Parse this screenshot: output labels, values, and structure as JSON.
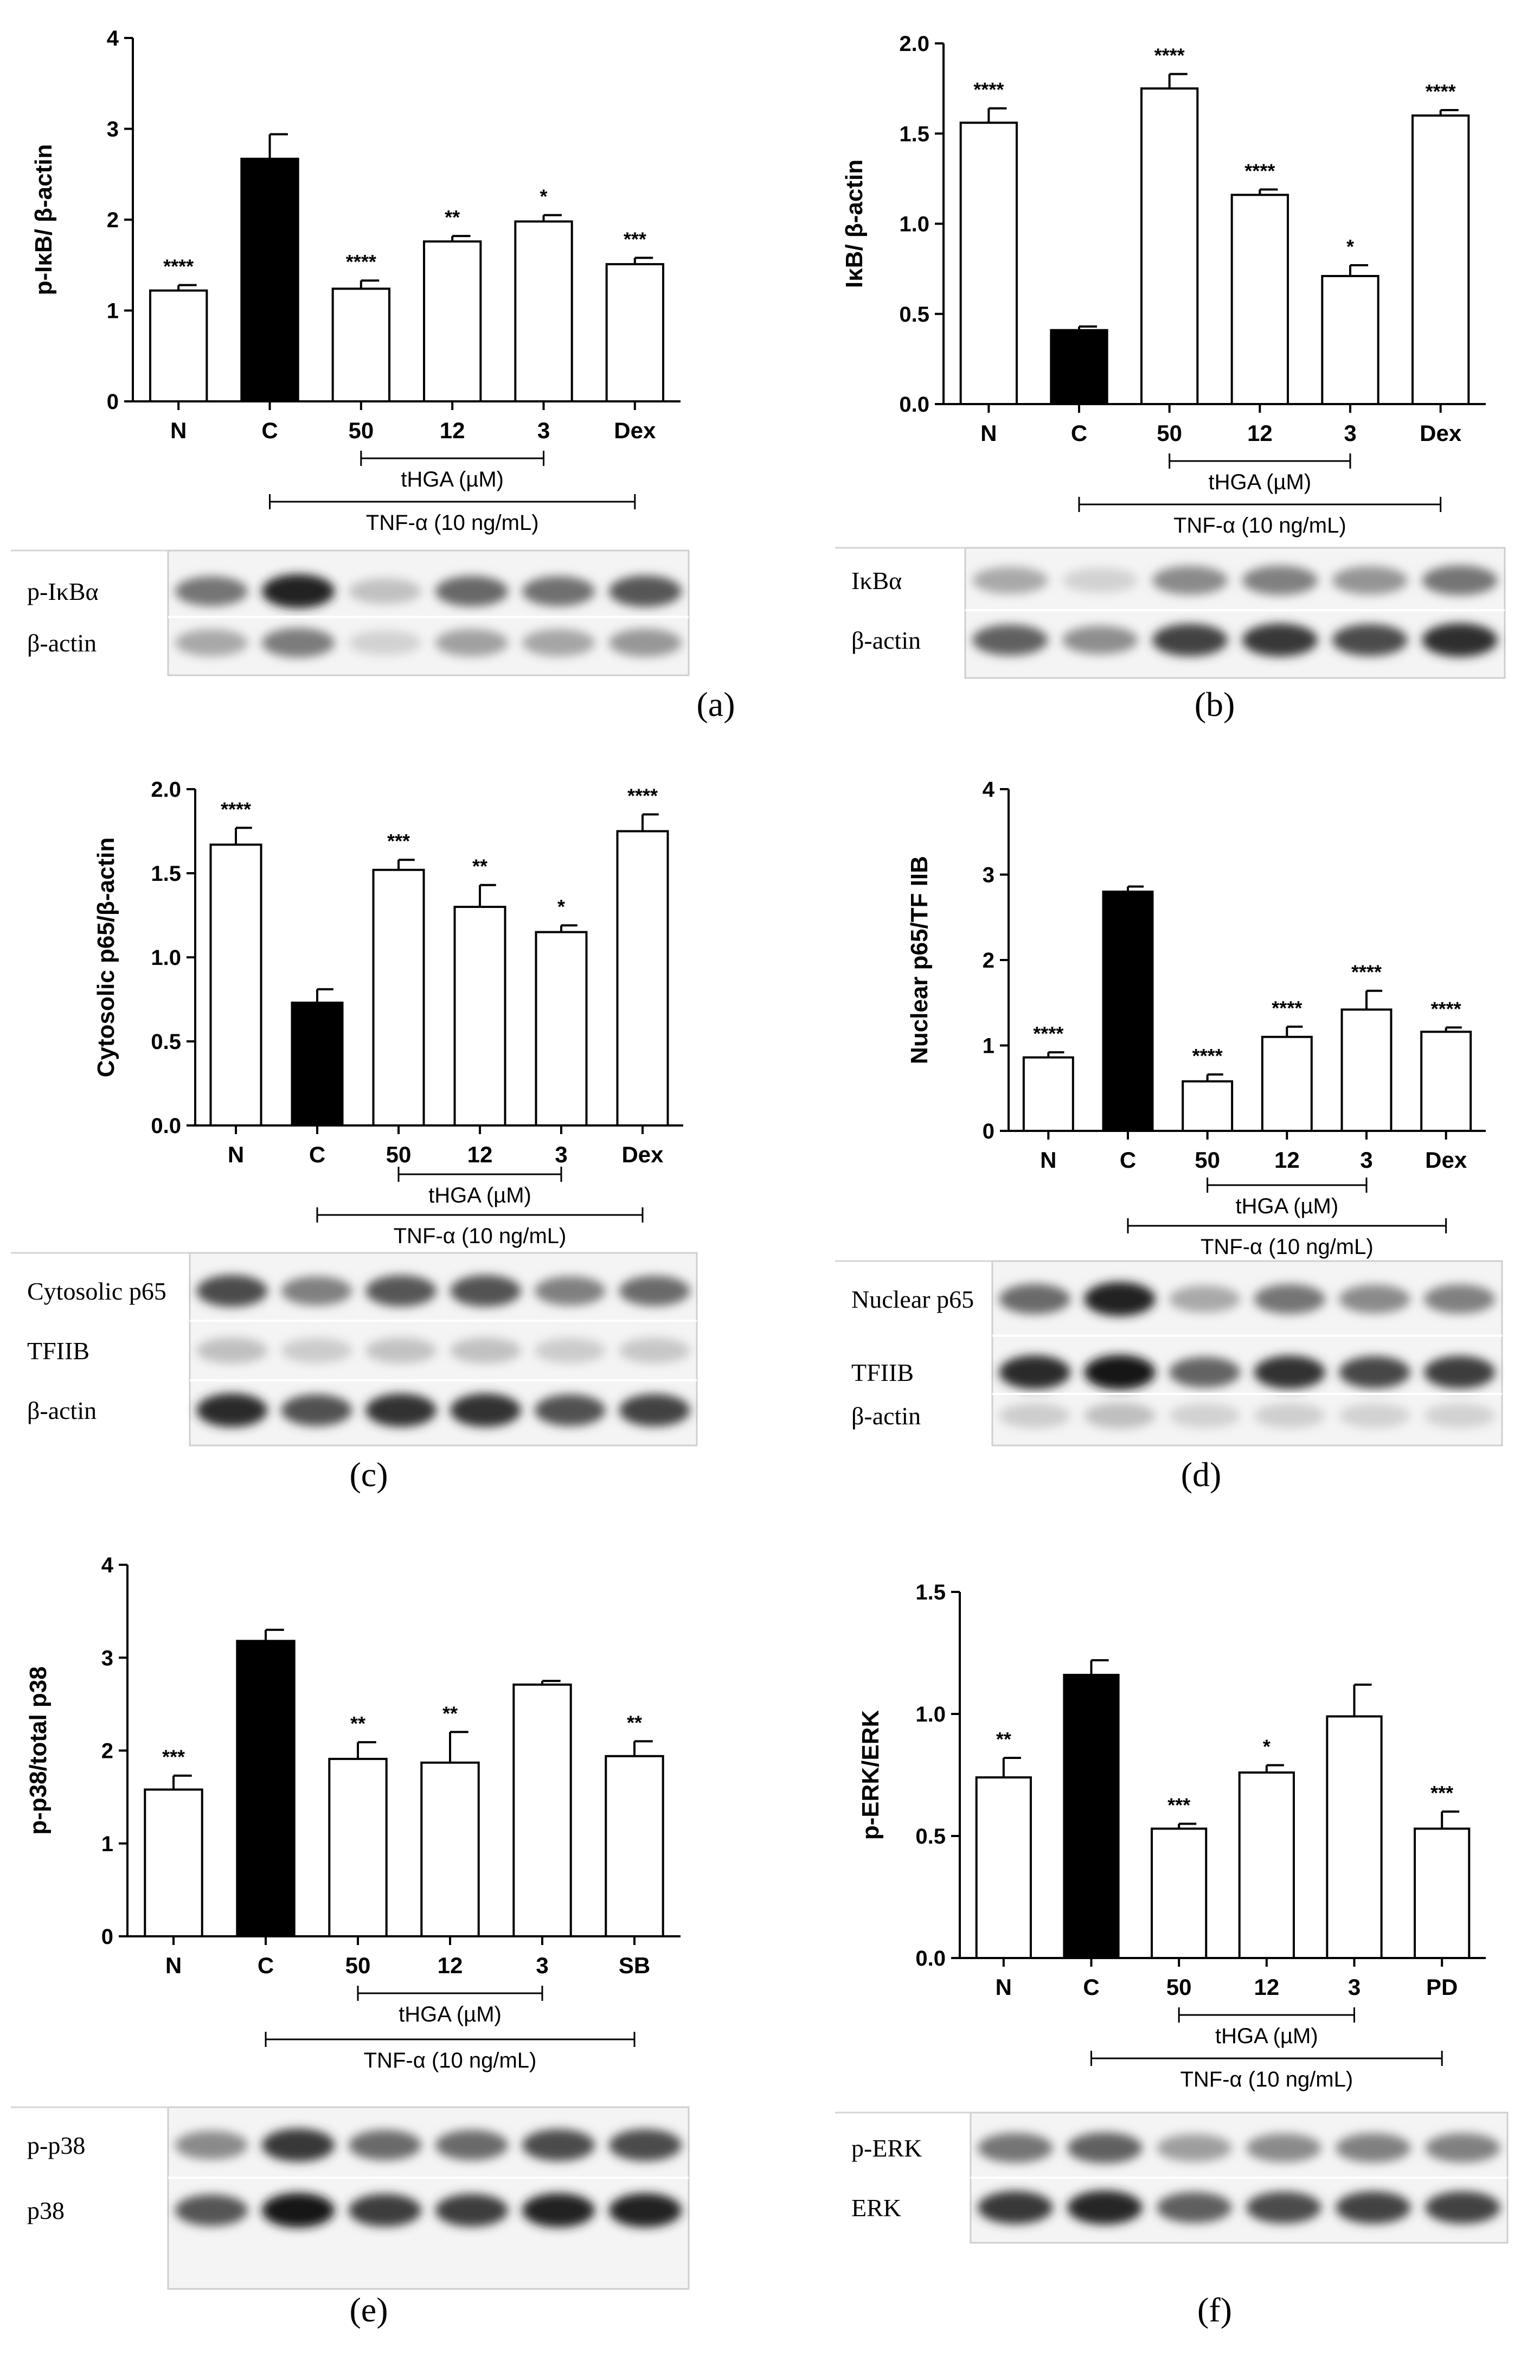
{
  "colors": {
    "control_bar": "#000000",
    "other_bar": "#ffffff",
    "axis": "#000000"
  },
  "panels": [
    {
      "caption": "(a)",
      "chart_data": {
        "type": "bar",
        "title": "",
        "ylabel": "p-IκB/ β-actin",
        "xlabel": "",
        "ylim": [
          0,
          4
        ],
        "yticks": [
          "0",
          "1",
          "2",
          "3",
          "4"
        ],
        "categories": [
          "N",
          "C",
          "50",
          "12",
          "3",
          "Dex"
        ],
        "values": [
          1.22,
          2.67,
          1.24,
          1.76,
          1.98,
          1.51
        ],
        "errors": [
          0.06,
          0.27,
          0.09,
          0.06,
          0.07,
          0.07
        ],
        "significance": [
          "****",
          "",
          "****",
          "**",
          "*",
          "***"
        ],
        "filled": [
          false,
          true,
          false,
          false,
          false,
          false
        ],
        "group_label": "tHGA (µM)",
        "treatment_label": "TNF-α (10 ng/mL)"
      },
      "blot": {
        "rows": [
          "p-IκBα",
          "β-actin"
        ]
      }
    },
    {
      "caption": "(b)",
      "chart_data": {
        "type": "bar",
        "title": "",
        "ylabel": "IκB/ β-actin",
        "xlabel": "",
        "ylim": [
          0,
          2.0
        ],
        "yticks": [
          "0.0",
          "0.5",
          "1.0",
          "1.5",
          "2.0"
        ],
        "categories": [
          "N",
          "C",
          "50",
          "12",
          "3",
          "Dex"
        ],
        "values": [
          1.56,
          0.41,
          1.75,
          1.16,
          0.71,
          1.6
        ],
        "errors": [
          0.08,
          0.02,
          0.08,
          0.03,
          0.06,
          0.03
        ],
        "significance": [
          "****",
          "",
          "****",
          "****",
          "*",
          "****"
        ],
        "filled": [
          false,
          true,
          false,
          false,
          false,
          false
        ],
        "group_label": "tHGA (µM)",
        "treatment_label": "TNF-α (10 ng/mL)"
      },
      "blot": {
        "rows": [
          "IκBα",
          "β-actin"
        ]
      }
    },
    {
      "caption": "(c)",
      "chart_data": {
        "type": "bar",
        "title": "",
        "ylabel": "Cytosolic p65/β-actin",
        "xlabel": "",
        "ylim": [
          0,
          2.0
        ],
        "yticks": [
          "0.0",
          "0.5",
          "1.0",
          "1.5",
          "2.0"
        ],
        "categories": [
          "N",
          "C",
          "50",
          "12",
          "3",
          "Dex"
        ],
        "values": [
          1.67,
          0.73,
          1.52,
          1.3,
          1.15,
          1.75
        ],
        "errors": [
          0.1,
          0.08,
          0.06,
          0.13,
          0.04,
          0.1
        ],
        "significance": [
          "****",
          "",
          "***",
          "**",
          "*",
          "****"
        ],
        "filled": [
          false,
          true,
          false,
          false,
          false,
          false
        ],
        "group_label": "tHGA (µM)",
        "treatment_label": "TNF-α (10 ng/mL)"
      },
      "blot": {
        "rows": [
          "Cytosolic p65",
          "TFIIB",
          "β-actin"
        ]
      }
    },
    {
      "caption": "(d)",
      "chart_data": {
        "type": "bar",
        "title": "",
        "ylabel": "Nuclear p65/TF IIB",
        "xlabel": "",
        "ylim": [
          0,
          4
        ],
        "yticks": [
          "0",
          "1",
          "2",
          "3",
          "4"
        ],
        "categories": [
          "N",
          "C",
          "50",
          "12",
          "3",
          "Dex"
        ],
        "values": [
          0.86,
          2.8,
          0.58,
          1.1,
          1.42,
          1.16
        ],
        "errors": [
          0.06,
          0.06,
          0.08,
          0.12,
          0.22,
          0.05
        ],
        "significance": [
          "****",
          "",
          "****",
          "****",
          "****",
          "****"
        ],
        "filled": [
          false,
          true,
          false,
          false,
          false,
          false
        ],
        "group_label": "tHGA (µM)",
        "treatment_label": "TNF-α (10 ng/mL)"
      },
      "blot": {
        "rows": [
          "Nuclear p65",
          "TFIIB",
          "β-actin"
        ]
      }
    },
    {
      "caption": "(e)",
      "chart_data": {
        "type": "bar",
        "title": "",
        "ylabel": "p-p38/total p38",
        "xlabel": "",
        "ylim": [
          0,
          4
        ],
        "yticks": [
          "0",
          "1",
          "2",
          "3",
          "4"
        ],
        "categories": [
          "N",
          "C",
          "50",
          "12",
          "3",
          "SB"
        ],
        "values": [
          1.58,
          3.18,
          1.91,
          1.87,
          2.71,
          1.94
        ],
        "errors": [
          0.15,
          0.12,
          0.18,
          0.33,
          0.04,
          0.16
        ],
        "significance": [
          "***",
          "",
          "**",
          "**",
          "",
          "**"
        ],
        "filled": [
          false,
          true,
          false,
          false,
          false,
          false
        ],
        "group_label": "tHGA (µM)",
        "treatment_label": "TNF-α (10 ng/mL)"
      },
      "blot": {
        "rows": [
          "p-p38",
          "p38"
        ]
      }
    },
    {
      "caption": "(f)",
      "chart_data": {
        "type": "bar",
        "title": "",
        "ylabel": "p-ERK/ERK",
        "xlabel": "",
        "ylim": [
          0,
          1.5
        ],
        "yticks": [
          "0.0",
          "0.5",
          "1.0",
          "1.5"
        ],
        "categories": [
          "N",
          "C",
          "50",
          "12",
          "3",
          "PD"
        ],
        "values": [
          0.74,
          1.16,
          0.53,
          0.76,
          0.99,
          0.53
        ],
        "errors": [
          0.08,
          0.06,
          0.02,
          0.03,
          0.13,
          0.07
        ],
        "significance": [
          "**",
          "",
          "***",
          "*",
          "",
          "***"
        ],
        "filled": [
          false,
          true,
          false,
          false,
          false,
          false
        ],
        "group_label": "tHGA (µM)",
        "treatment_label": "TNF-α (10 ng/mL)"
      },
      "blot": {
        "rows": [
          "p-ERK",
          "ERK"
        ]
      }
    }
  ]
}
